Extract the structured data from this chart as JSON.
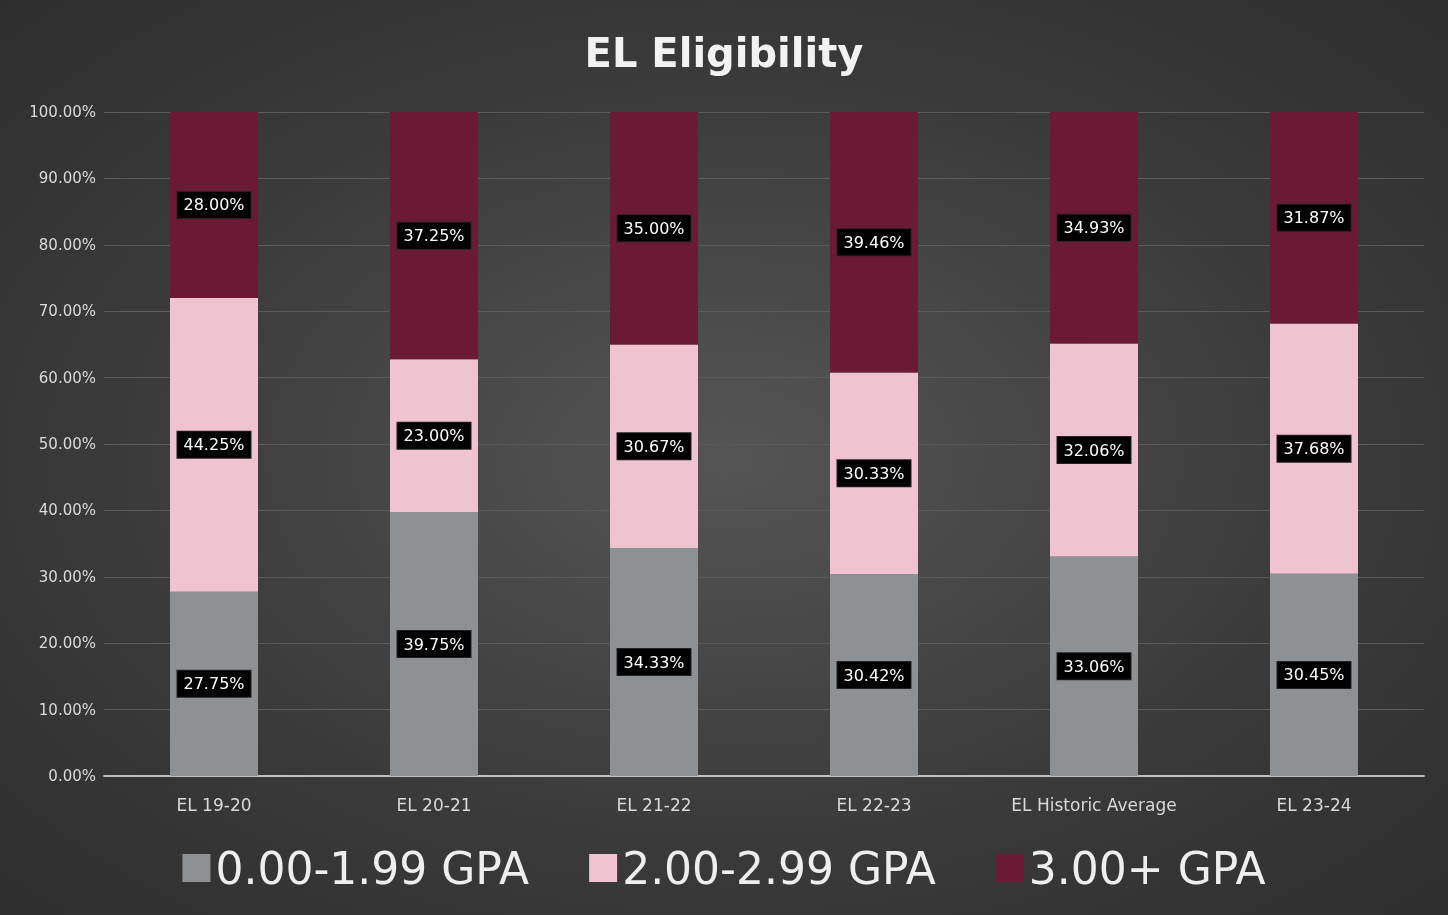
{
  "chart_data": {
    "type": "bar",
    "title": "EL Eligibility",
    "stacked": true,
    "categories": [
      "EL 19-20",
      "EL 20-21",
      "EL 21-22",
      "EL 22-23",
      "EL Historic Average",
      "EL 23-24"
    ],
    "series": [
      {
        "name": "0.00-1.99 GPA",
        "color": "#8e9194",
        "values": [
          27.75,
          39.75,
          34.33,
          30.42,
          33.06,
          30.45
        ],
        "value_labels": [
          "27.75%",
          "39.75%",
          "34.33%",
          "30.42%",
          "33.06%",
          "30.45%"
        ]
      },
      {
        "name": "2.00-2.99 GPA",
        "color": "#efc3cf",
        "values": [
          44.25,
          23.0,
          30.67,
          30.33,
          32.06,
          37.68
        ],
        "value_labels": [
          "44.25%",
          "23.00%",
          "30.67%",
          "30.33%",
          "32.06%",
          "37.68%"
        ]
      },
      {
        "name": "3.00+ GPA",
        "color": "#6b1a36",
        "values": [
          28.0,
          37.25,
          35.0,
          39.46,
          34.93,
          31.87
        ],
        "value_labels": [
          "28.00%",
          "37.25%",
          "35.00%",
          "39.46%",
          "34.93%",
          "31.87%"
        ]
      }
    ],
    "ylim": [
      0,
      100
    ],
    "yticks": [
      {
        "value": 0,
        "label": "0.00%"
      },
      {
        "value": 10,
        "label": "10.00%"
      },
      {
        "value": 20,
        "label": "20.00%"
      },
      {
        "value": 30,
        "label": "30.00%"
      },
      {
        "value": 40,
        "label": "40.00%"
      },
      {
        "value": 50,
        "label": "50.00%"
      },
      {
        "value": 60,
        "label": "60.00%"
      },
      {
        "value": 70,
        "label": "70.00%"
      },
      {
        "value": 80,
        "label": "80.00%"
      },
      {
        "value": 90,
        "label": "90.00%"
      },
      {
        "value": 100,
        "label": "100.00%"
      }
    ],
    "grid": "y",
    "legend": "bottom"
  }
}
